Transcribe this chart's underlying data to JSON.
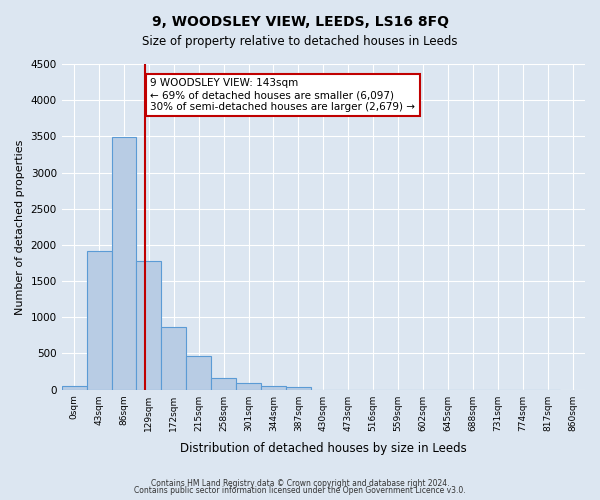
{
  "title": "9, WOODSLEY VIEW, LEEDS, LS16 8FQ",
  "subtitle": "Size of property relative to detached houses in Leeds",
  "xlabel": "Distribution of detached houses by size in Leeds",
  "ylabel": "Number of detached properties",
  "bar_color": "#b8cce4",
  "bar_edge_color": "#5b9bd5",
  "bar_values": [
    50,
    1910,
    3490,
    1780,
    860,
    460,
    165,
    90,
    55,
    40,
    0,
    0,
    0,
    0,
    0,
    0,
    0,
    0,
    0,
    0
  ],
  "bin_labels": [
    "0sqm",
    "43sqm",
    "86sqm",
    "129sqm",
    "172sqm",
    "215sqm",
    "258sqm",
    "301sqm",
    "344sqm",
    "387sqm",
    "430sqm",
    "473sqm",
    "516sqm",
    "559sqm",
    "602sqm",
    "645sqm",
    "688sqm",
    "731sqm",
    "774sqm",
    "817sqm",
    "860sqm"
  ],
  "bin_edges": [
    0,
    43,
    86,
    129,
    172,
    215,
    258,
    301,
    344,
    387,
    430,
    473,
    516,
    559,
    602,
    645,
    688,
    731,
    774,
    817,
    860
  ],
  "ylim": [
    0,
    4500
  ],
  "yticks": [
    0,
    500,
    1000,
    1500,
    2000,
    2500,
    3000,
    3500,
    4000,
    4500
  ],
  "property_size": 143,
  "vline_color": "#c00000",
  "annotation_title": "9 WOODSLEY VIEW: 143sqm",
  "annotation_line1": "← 69% of detached houses are smaller (6,097)",
  "annotation_line2": "30% of semi-detached houses are larger (2,679) →",
  "annotation_box_color": "#c00000",
  "footnote1": "Contains HM Land Registry data © Crown copyright and database right 2024.",
  "footnote2": "Contains public sector information licensed under the Open Government Licence v3.0.",
  "background_color": "#dce6f1",
  "plot_bg_color": "#dce6f1",
  "figsize": [
    6.0,
    5.0
  ],
  "dpi": 100
}
